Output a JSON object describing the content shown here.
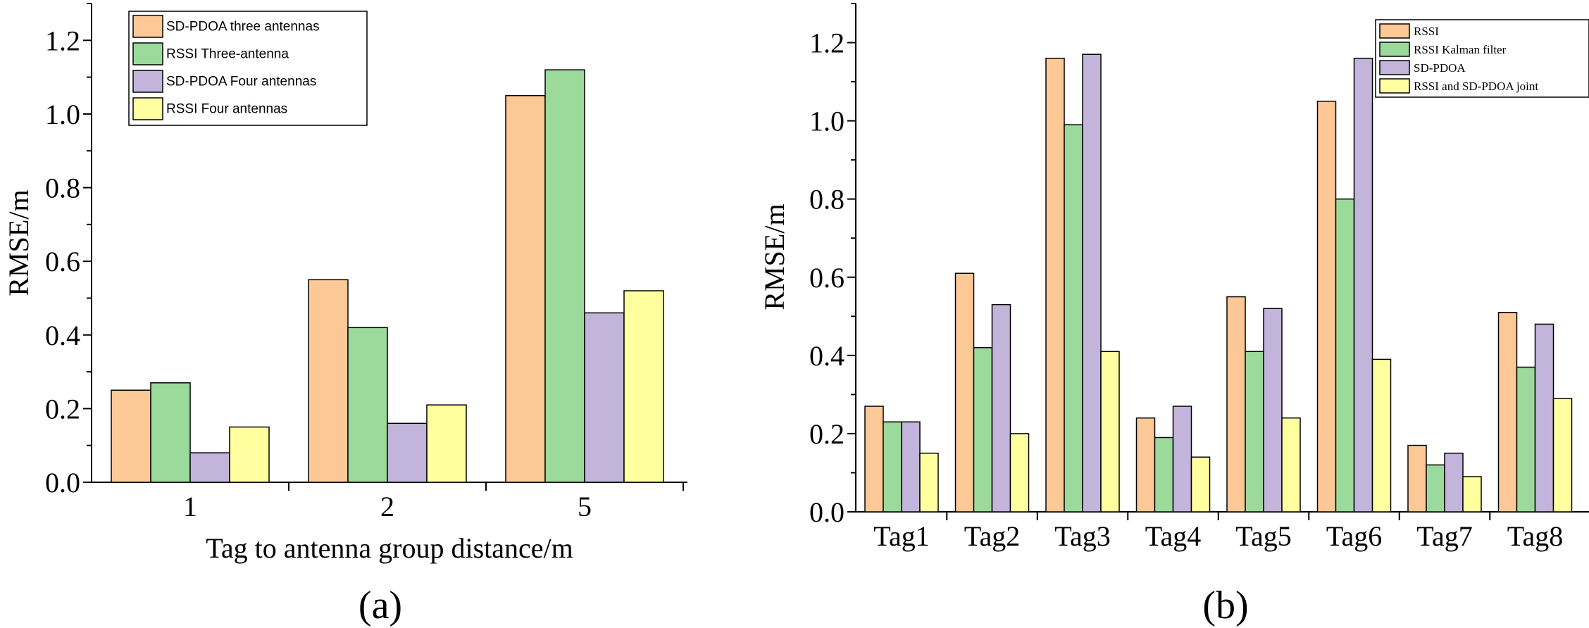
{
  "colors": {
    "orange": "#FCC895",
    "green": "#9BDA9B",
    "purple": "#C2B4DA",
    "yellow": "#FFFFA0",
    "stroke": "#000000"
  },
  "chart_data": [
    {
      "type": "bar",
      "panel_label": "(a)",
      "xlabel": "Tag to antenna group distance/m",
      "ylabel": "RMSE/m",
      "ylim": [
        0,
        1.3
      ],
      "yticks": [
        "0.0",
        "0.2",
        "0.4",
        "0.6",
        "0.8",
        "1.0",
        "1.2"
      ],
      "categories": [
        "1",
        "2",
        "5"
      ],
      "legend_position": "top-left",
      "grid": false,
      "series": [
        {
          "name": "SD-PDOA three antennas",
          "color": "orange",
          "values": [
            0.25,
            0.55,
            1.05
          ]
        },
        {
          "name": "RSSI Three-antenna",
          "color": "green",
          "values": [
            0.27,
            0.42,
            1.12
          ]
        },
        {
          "name": "SD-PDOA Four antennas",
          "color": "purple",
          "values": [
            0.08,
            0.16,
            0.46
          ]
        },
        {
          "name": "RSSI Four antennas",
          "color": "yellow",
          "values": [
            0.15,
            0.21,
            0.52
          ]
        }
      ]
    },
    {
      "type": "bar",
      "panel_label": "(b)",
      "xlabel": "",
      "ylabel": "RMSE/m",
      "ylim": [
        0,
        1.3
      ],
      "yticks": [
        "0.0",
        "0.2",
        "0.4",
        "0.6",
        "0.8",
        "1.0",
        "1.2"
      ],
      "categories": [
        "Tag1",
        "Tag2",
        "Tag3",
        "Tag4",
        "Tag5",
        "Tag6",
        "Tag7",
        "Tag8"
      ],
      "legend_position": "top-right",
      "grid": false,
      "series": [
        {
          "name": "RSSI",
          "color": "orange",
          "values": [
            0.27,
            0.61,
            1.16,
            0.24,
            0.55,
            1.05,
            0.17,
            0.51
          ]
        },
        {
          "name": "RSSI Kalman filter",
          "color": "green",
          "values": [
            0.23,
            0.42,
            0.99,
            0.19,
            0.41,
            0.8,
            0.12,
            0.37
          ]
        },
        {
          "name": "SD-PDOA",
          "color": "purple",
          "values": [
            0.23,
            0.53,
            1.17,
            0.27,
            0.52,
            1.16,
            0.15,
            0.48
          ]
        },
        {
          "name": "RSSI and SD-PDOA joint",
          "color": "yellow",
          "values": [
            0.15,
            0.2,
            0.41,
            0.14,
            0.24,
            0.39,
            0.09,
            0.29
          ]
        }
      ]
    }
  ]
}
